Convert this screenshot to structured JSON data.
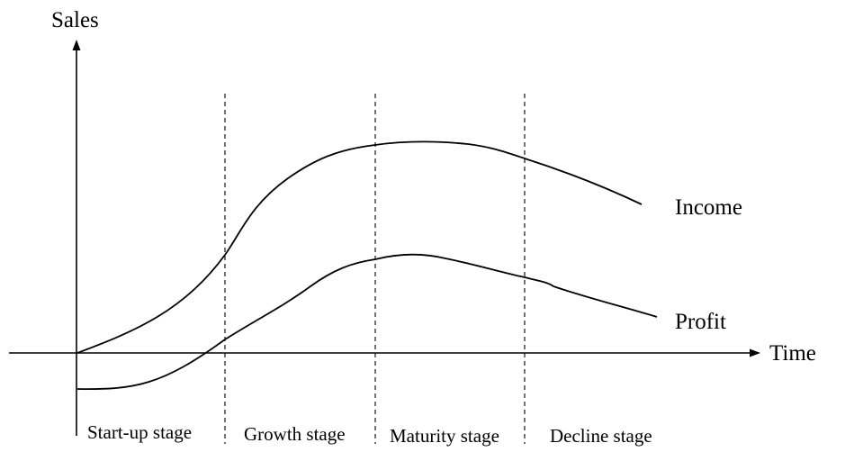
{
  "axes": {
    "y_label": "Sales",
    "x_label": "Time"
  },
  "curves": [
    {
      "id": "income",
      "label": "Income"
    },
    {
      "id": "profit",
      "label": "Profit"
    }
  ],
  "stages": [
    {
      "label": "Start-up stage"
    },
    {
      "label": "Growth stage"
    },
    {
      "label": "Maturity stage"
    },
    {
      "label": "Decline stage"
    }
  ]
}
